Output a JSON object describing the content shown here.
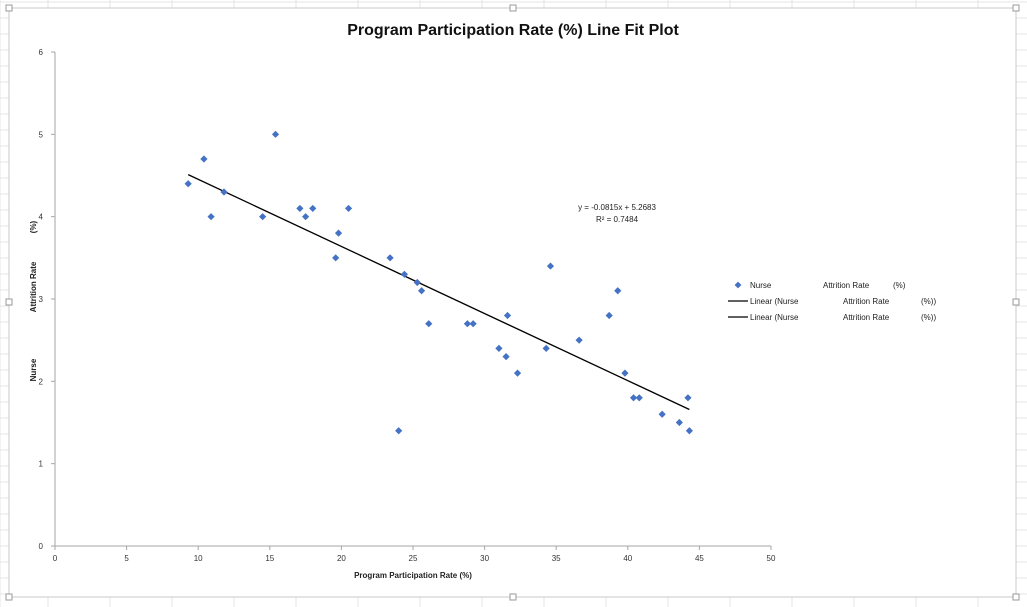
{
  "chart_data": {
    "type": "scatter",
    "title": "Program Participation Rate (%) Line Fit  Plot",
    "xlabel": "Program Participation Rate (%)",
    "ylabel": [
      "Nurse",
      "Attrition Rate",
      "(%)"
    ],
    "xlim": [
      0,
      50
    ],
    "ylim": [
      0,
      6
    ],
    "x_ticks": [
      0,
      5,
      10,
      15,
      20,
      25,
      30,
      35,
      40,
      45,
      50
    ],
    "y_ticks": [
      0,
      1,
      2,
      3,
      4,
      5,
      6
    ],
    "grid": false,
    "legend_position": "right",
    "series": [
      {
        "name": "Nurse Attrition Rate (%)",
        "legend": [
          "Nurse",
          "Attrition Rate",
          "(%)"
        ],
        "color": "#4472C4",
        "marker": "diamond",
        "points": [
          [
            9.3,
            4.4
          ],
          [
            10.4,
            4.7
          ],
          [
            10.9,
            4.0
          ],
          [
            11.8,
            4.3
          ],
          [
            14.5,
            4.0
          ],
          [
            15.4,
            5.0
          ],
          [
            17.1,
            4.1
          ],
          [
            17.5,
            4.0
          ],
          [
            18.0,
            4.1
          ],
          [
            19.6,
            3.5
          ],
          [
            19.8,
            3.8
          ],
          [
            20.5,
            4.1
          ],
          [
            23.4,
            3.5
          ],
          [
            24.0,
            1.4
          ],
          [
            24.4,
            3.3
          ],
          [
            25.3,
            3.2
          ],
          [
            25.6,
            3.1
          ],
          [
            26.1,
            2.7
          ],
          [
            28.8,
            2.7
          ],
          [
            29.2,
            2.7
          ],
          [
            31.0,
            2.4
          ],
          [
            31.5,
            2.3
          ],
          [
            31.6,
            2.8
          ],
          [
            32.3,
            2.1
          ],
          [
            34.3,
            2.4
          ],
          [
            34.6,
            3.4
          ],
          [
            36.6,
            2.5
          ],
          [
            38.7,
            2.8
          ],
          [
            39.3,
            3.1
          ],
          [
            39.8,
            2.1
          ],
          [
            40.4,
            1.8
          ],
          [
            40.8,
            1.8
          ],
          [
            42.4,
            1.6
          ],
          [
            43.6,
            1.5
          ],
          [
            44.2,
            1.8
          ],
          [
            44.3,
            1.4
          ]
        ]
      },
      {
        "name": "Linear (Nurse Attrition Rate (%))",
        "legend": [
          "Linear (Nurse",
          "Attrition Rate",
          "(%))"
        ],
        "color": "#000000",
        "type": "line",
        "slope": -0.0815,
        "intercept": 5.2683,
        "x_range": [
          9.3,
          44.3
        ]
      },
      {
        "name": "Linear (Nurse Attrition Rate (%))",
        "legend": [
          "Linear (Nurse",
          "Attrition Rate",
          "(%))"
        ],
        "color": "#000000",
        "type": "line",
        "slope": -0.0815,
        "intercept": 5.2683,
        "x_range": [
          9.3,
          44.3
        ]
      }
    ],
    "annotations": [
      "y = -0.0815x + 5.2683",
      "R² = 0.7484"
    ]
  }
}
